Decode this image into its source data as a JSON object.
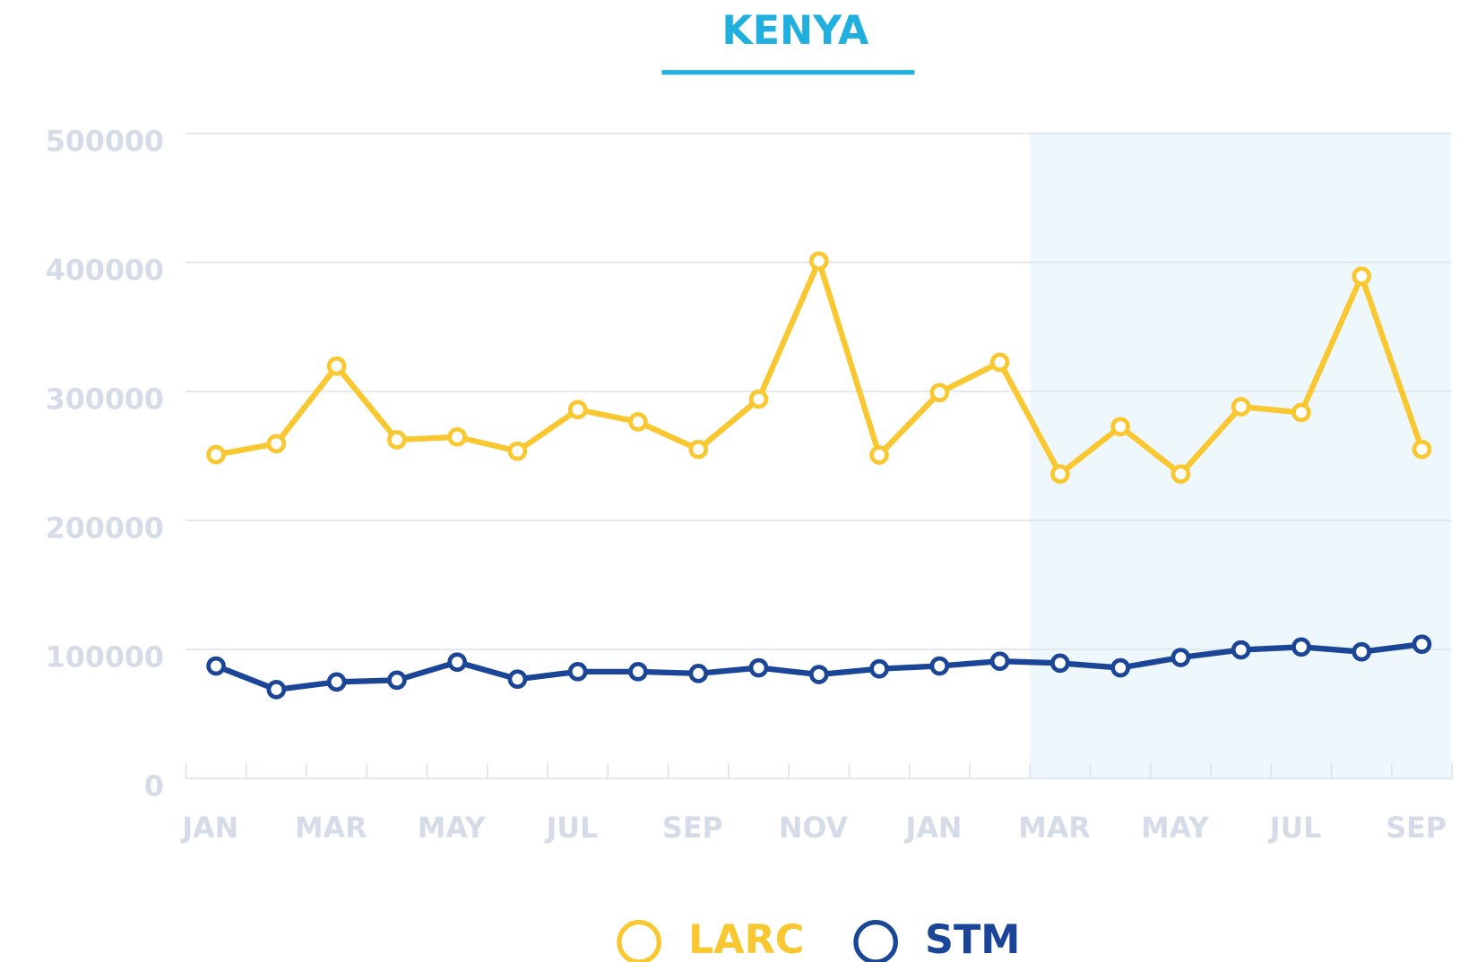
{
  "chart_data": {
    "type": "line",
    "title": "KENYA",
    "categories": [
      "JAN",
      null,
      "MAR",
      null,
      "MAY",
      null,
      "JUL",
      null,
      "SEP",
      null,
      "NOV",
      null,
      "JAN",
      null,
      "MAR",
      null,
      "MAY",
      null,
      "JUL",
      null,
      "SEP"
    ],
    "series": [
      {
        "name": "LARC",
        "color": "#f9c72f",
        "values": [
          251000,
          259500,
          319600,
          262500,
          264700,
          253700,
          285900,
          276400,
          255100,
          294000,
          401000,
          250700,
          299100,
          322600,
          236000,
          272700,
          236000,
          288100,
          283700,
          389300,
          255100
        ]
      },
      {
        "name": "STM",
        "color": "#1b4596",
        "values": [
          87200,
          68900,
          74800,
          76200,
          90200,
          77000,
          82800,
          82800,
          81400,
          85800,
          80600,
          85000,
          87200,
          90900,
          89400,
          85800,
          93800,
          99700,
          101900,
          98200,
          104100
        ]
      }
    ],
    "ylim": [
      0,
      500000
    ],
    "yticks": [
      0,
      100000,
      200000,
      300000,
      400000,
      500000
    ],
    "grid": true,
    "shaded_start_index": 13.5,
    "title_color": "#1fb0e0",
    "legend": "bottom"
  }
}
